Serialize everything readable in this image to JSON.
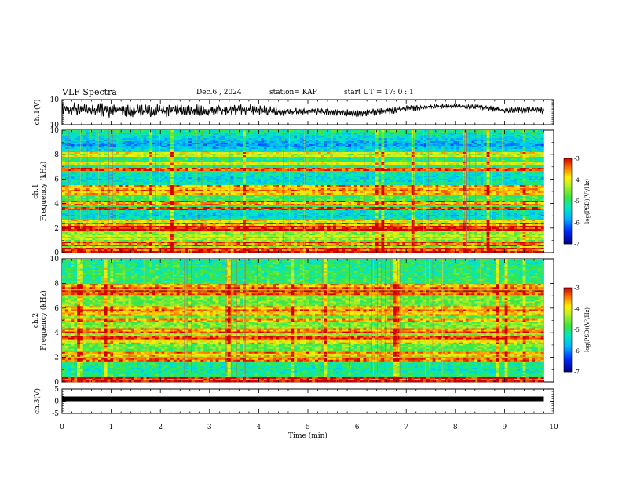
{
  "header": {
    "title": "VLF Spectra",
    "date": "Dec.6 , 2024",
    "station": "station= KAP",
    "start_ut": "start UT = 17: 0 : 1"
  },
  "chart_data": [
    {
      "type": "line",
      "ylabel": "ch.1(V)",
      "ylim": [
        -10,
        10
      ],
      "y_ticklabels": [
        "10",
        "-10"
      ],
      "x": {
        "label": "Time (min)",
        "range": [
          0,
          10
        ]
      },
      "description_series": "ch.1 waveform",
      "envelope": {
        "x": [
          0,
          1,
          2,
          3,
          3.9,
          4.5,
          5,
          6,
          6.6,
          7,
          7.5,
          8,
          8.5,
          8.8,
          9,
          9.3,
          9.8
        ],
        "center": [
          2,
          1.5,
          1,
          1.5,
          2,
          0,
          1,
          -1,
          1,
          3,
          4.5,
          5,
          4,
          3,
          1,
          2,
          2
        ],
        "amplitude": [
          6,
          6,
          6,
          5,
          5,
          3,
          3,
          3,
          3,
          3,
          2,
          2,
          2,
          3,
          2,
          3,
          3
        ]
      }
    },
    {
      "type": "heatmap",
      "ylabel": "ch.1\nFrequency (kHz)",
      "ylim": [
        0,
        10
      ],
      "y_ticklabels": [
        "0",
        "2",
        "4",
        "6",
        "8",
        "10"
      ],
      "xlim": [
        0,
        9.8
      ],
      "colorbar": {
        "label": "log(PSD)(V²/Hz)",
        "range": [
          -7,
          -3
        ],
        "ticks": [
          "-3",
          "-4",
          "-5",
          "-6",
          "-7"
        ]
      },
      "bands": [
        {
          "f": 0.2,
          "v": -3.4
        },
        {
          "f": 0.7,
          "v": -3.6
        },
        {
          "f": 1.2,
          "v": -4.6
        },
        {
          "f": 2.0,
          "v": -3.3
        },
        {
          "f": 2.2,
          "v": -3.8
        },
        {
          "f": 2.5,
          "v": -4.2
        },
        {
          "f": 3.6,
          "v": -3.4
        },
        {
          "f": 4.0,
          "v": -3.8
        },
        {
          "f": 4.9,
          "v": -3.9
        },
        {
          "f": 5.3,
          "v": -4.0
        },
        {
          "f": 6.8,
          "v": -3.5
        },
        {
          "f": 7.3,
          "v": -4.3
        },
        {
          "f": 8.0,
          "v": -4.4
        }
      ],
      "background": [
        {
          "f": 0,
          "v": -4.2
        },
        {
          "f": 1,
          "v": -4.6
        },
        {
          "f": 2,
          "v": -4.3
        },
        {
          "f": 3,
          "v": -5.6
        },
        {
          "f": 4,
          "v": -4.8
        },
        {
          "f": 5,
          "v": -4.9
        },
        {
          "f": 6,
          "v": -5.5
        },
        {
          "f": 7,
          "v": -5.1
        },
        {
          "f": 8,
          "v": -5.0
        },
        {
          "f": 8.8,
          "v": -5.9
        },
        {
          "f": 10,
          "v": -5.0
        }
      ]
    },
    {
      "type": "heatmap",
      "ylabel": "ch.2\nFrequency (kHz)",
      "ylim": [
        0,
        10
      ],
      "y_ticklabels": [
        "0",
        "2",
        "4",
        "6",
        "8",
        "10"
      ],
      "xlim": [
        0,
        9.8
      ],
      "colorbar": {
        "label": "log(PSD)(V²/Hz)",
        "range": [
          -7,
          -3
        ],
        "ticks": [
          "-3",
          "-4",
          "-5",
          "-6",
          "-7"
        ]
      },
      "bands": [
        {
          "f": 0.2,
          "v": -3.4
        },
        {
          "f": 1.8,
          "v": -3.6
        },
        {
          "f": 2.2,
          "v": -4.0
        },
        {
          "f": 3.3,
          "v": -4.2
        },
        {
          "f": 3.6,
          "v": -3.4
        },
        {
          "f": 4.2,
          "v": -3.7
        },
        {
          "f": 5.0,
          "v": -3.8
        },
        {
          "f": 5.6,
          "v": -4.0
        },
        {
          "f": 6.0,
          "v": -3.9
        },
        {
          "f": 7.2,
          "v": -3.6
        },
        {
          "f": 7.8,
          "v": -3.8
        }
      ],
      "background": [
        {
          "f": 0,
          "v": -4.8
        },
        {
          "f": 1,
          "v": -5.2
        },
        {
          "f": 2,
          "v": -4.9
        },
        {
          "f": 3,
          "v": -4.6
        },
        {
          "f": 4,
          "v": -4.4
        },
        {
          "f": 5,
          "v": -4.6
        },
        {
          "f": 6,
          "v": -4.7
        },
        {
          "f": 7,
          "v": -4.5
        },
        {
          "f": 8,
          "v": -4.9
        },
        {
          "f": 9,
          "v": -5.0
        },
        {
          "f": 10,
          "v": -5.1
        }
      ]
    },
    {
      "type": "line",
      "ylabel": "ch.3(V)",
      "ylim": [
        -5,
        5
      ],
      "y_ticklabels": [
        "5",
        "0",
        "-5"
      ],
      "x": {
        "label": "Time (min)",
        "range": [
          0,
          10
        ],
        "ticks": [
          "0",
          "1",
          "2",
          "3",
          "4",
          "5",
          "6",
          "7",
          "8",
          "9",
          "10"
        ]
      },
      "series": [
        {
          "x": [
            0,
            9.8
          ],
          "values": [
            0,
            0
          ]
        }
      ]
    }
  ]
}
